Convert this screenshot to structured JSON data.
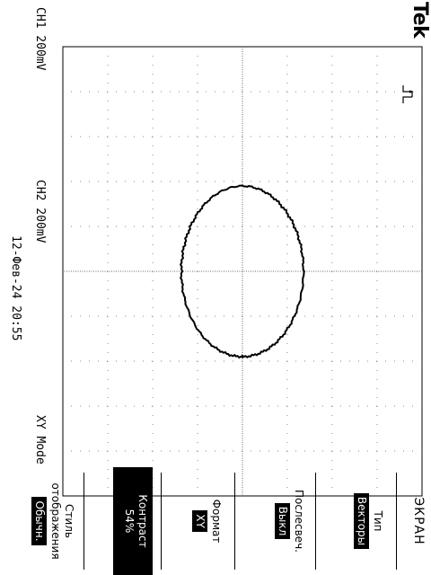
{
  "header": {
    "brand": "Tek",
    "trigger_icon": "trigger-edge-icon"
  },
  "channels": {
    "ch1": "CH1  200mV",
    "ch2": "CH2  200mV"
  },
  "mode": "XY Mode",
  "datetime": "12-Фев-24 20:55",
  "menu": {
    "title": "ЭКРАН",
    "items": [
      {
        "label": "Тип",
        "value": "Векторы"
      },
      {
        "label": "Послесвеч.",
        "value": "Выкл"
      },
      {
        "label": "Формат",
        "value": "XY"
      },
      {
        "label": "Контраст",
        "value": "54%"
      },
      {
        "label": "Стиль отображения",
        "value": "Обычн."
      }
    ]
  },
  "trace": {
    "type": "xy-ellipse",
    "x_amplitude_div": 1.9,
    "y_amplitude_div": 1.36,
    "center_div": [
      0,
      0
    ],
    "grid_divisions": [
      10,
      8
    ]
  }
}
